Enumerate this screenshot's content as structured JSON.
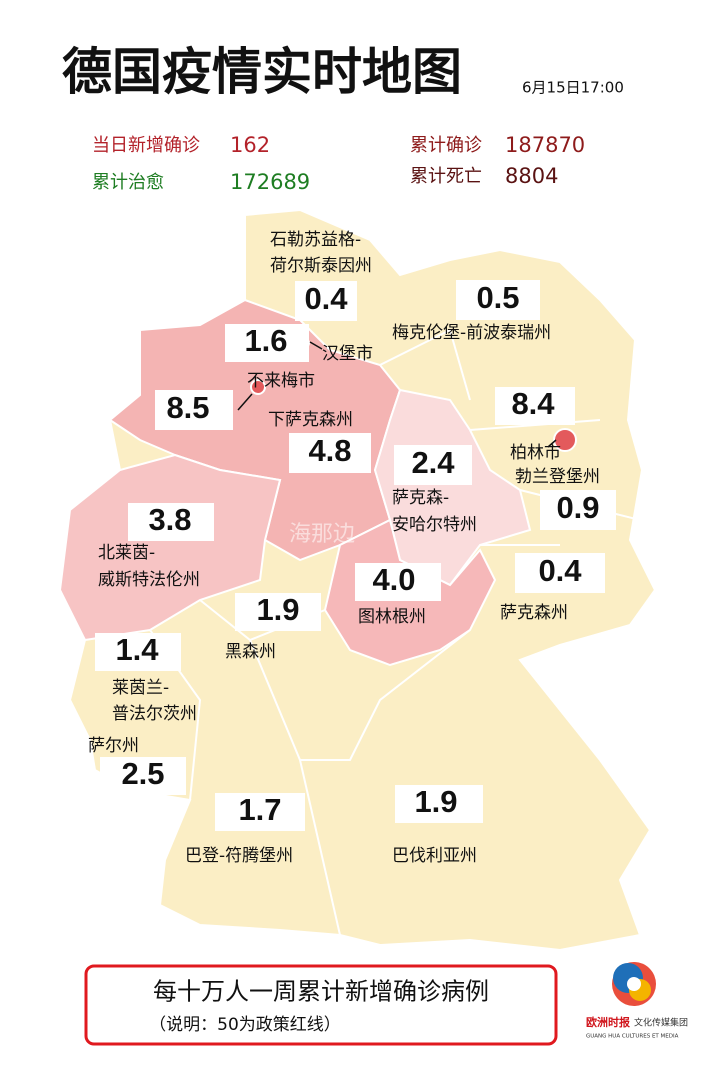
{
  "header": {
    "title": "德国疫情实时地图",
    "timestamp": "6月15日17:00"
  },
  "stats": [
    {
      "label": "当日新增确诊",
      "value": 162
    },
    {
      "label": "累计治愈",
      "value": 172689
    },
    {
      "label": "累计确诊",
      "value": 187870
    },
    {
      "label": "累计死亡",
      "value": 8804
    }
  ],
  "regions": [
    {
      "name_lines": [
        "石勒苏益格-",
        "荷尔斯泰因州"
      ],
      "value": 0.4
    },
    {
      "name_lines": [
        "梅克伦堡-前波泰瑞州"
      ],
      "value": 0.5
    },
    {
      "name_lines": [
        "汉堡市"
      ],
      "value": 1.6
    },
    {
      "name_lines": [
        "不来梅市"
      ],
      "value": 8.5
    },
    {
      "name_lines": [
        "下萨克森州"
      ],
      "value": 4.8
    },
    {
      "name_lines": [
        "柏林市"
      ],
      "value": 8.4
    },
    {
      "name_lines": [
        "勃兰登堡州"
      ],
      "value": 0.9
    },
    {
      "name_lines": [
        "萨克森-",
        "安哈尔特州"
      ],
      "value": 2.4
    },
    {
      "name_lines": [
        "北莱茵-",
        "威斯特法伦州"
      ],
      "value": 3.8
    },
    {
      "name_lines": [
        "萨克森州"
      ],
      "value": 0.4
    },
    {
      "name_lines": [
        "图林根州"
      ],
      "value": 4.0,
      "value_label": "4.0"
    },
    {
      "name_lines": [
        "黑森州"
      ],
      "value": 1.9
    },
    {
      "name_lines": [
        "莱茵兰-",
        "普法尔茨州"
      ],
      "value": 1.4
    },
    {
      "name_lines": [
        "萨尔州"
      ],
      "value": 2.5
    },
    {
      "name_lines": [
        "巴登-符腾堡州"
      ],
      "value": 1.7
    },
    {
      "name_lines": [
        "巴伐利亚州"
      ],
      "value": 1.9
    }
  ],
  "watermark": "海那边",
  "legend": {
    "title": "每十万人一周累计新增确诊病例",
    "note": "（说明：50为政策红线）"
  },
  "logo": {
    "name": "欧洲时报",
    "subtitle": "文化传媒集团",
    "english": "GUANG HUA CULTURES ET MEDIA"
  }
}
